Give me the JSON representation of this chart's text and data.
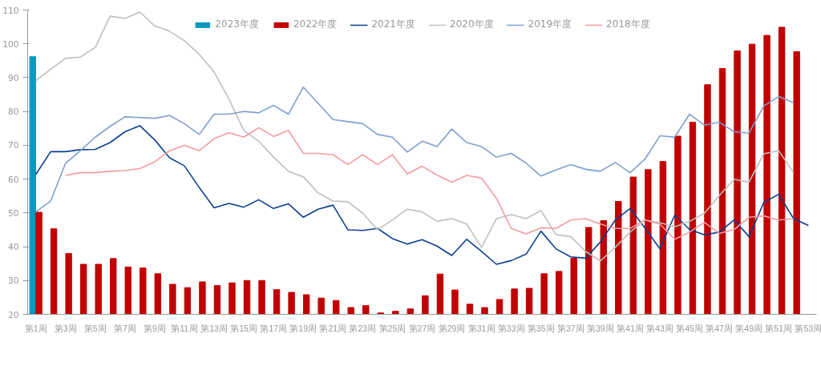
{
  "chart_data": {
    "type": "bar",
    "categories": [
      "第1周",
      null,
      "第3周",
      null,
      "第5周",
      null,
      "第7周",
      null,
      "第9周",
      null,
      "第11周",
      null,
      "第13周",
      null,
      "第15周",
      null,
      "第17周",
      null,
      "第19周",
      null,
      "第21周",
      null,
      "第23周",
      null,
      "第25周",
      null,
      "第27周",
      null,
      "第29周",
      null,
      "第31周",
      null,
      "第33周",
      null,
      "第35周",
      null,
      "第37周",
      null,
      "第39周",
      null,
      "第41周",
      null,
      "第43周",
      null,
      "第45周",
      null,
      "第47周",
      null,
      "第49周",
      null,
      "第51周",
      null,
      "第53周"
    ],
    "ylim": [
      20,
      110
    ],
    "yticks": [
      20,
      30,
      40,
      50,
      60,
      70,
      80,
      90,
      100,
      110
    ],
    "legend": "top",
    "series": [
      {
        "name": "2023年度",
        "color": "#0899c3",
        "values": [
          96.2,
          null,
          null,
          null,
          null,
          null,
          null,
          null,
          null,
          null,
          null,
          null,
          null,
          null,
          null,
          null,
          null,
          null,
          null,
          null,
          null,
          null,
          null,
          null,
          null,
          null,
          null,
          null,
          null,
          null,
          null,
          null,
          null,
          null,
          null,
          null,
          null,
          null,
          null,
          null,
          null,
          null,
          null,
          null,
          null,
          null,
          null,
          null,
          null,
          null,
          null,
          null,
          null
        ]
      },
      {
        "name": "2022年度",
        "color": "#c00000",
        "values": [
          50.2,
          45.3,
          38,
          34.8,
          34.8,
          36.5,
          34,
          33.7,
          32,
          28.9,
          27.9,
          29.6,
          28.5,
          29.3,
          30,
          30,
          27.3,
          26.5,
          25.8,
          24.8,
          24.1,
          22,
          22.6,
          20.4,
          20.9,
          21.6,
          25.5,
          31.9,
          27.2,
          23,
          22,
          24.4,
          27.5,
          27.7,
          32,
          32.7,
          36.6,
          45.7,
          47.7,
          53.4,
          60.6,
          62.8,
          65.2,
          72.7,
          76.8,
          87.9,
          92.7,
          97.9,
          99.9,
          102.5,
          104.9,
          97.7,
          null
        ]
      },
      {
        "name": "2021年度",
        "type": "line",
        "color": "#0d3f8f",
        "values": [
          61.4,
          68.1,
          68.1,
          68.7,
          68.8,
          70.8,
          74,
          75.8,
          71.6,
          66.3,
          63.9,
          57.5,
          51.5,
          52.8,
          51.7,
          53.9,
          51.3,
          52.7,
          48.7,
          51.1,
          52.3,
          45,
          44.8,
          45.4,
          42.4,
          40.8,
          42.1,
          40.2,
          37.4,
          42.2,
          38.6,
          34.8,
          35.9,
          37.8,
          44.6,
          39.4,
          37,
          36.6,
          41.4,
          47.9,
          51.3,
          45.5,
          39.4,
          49.3,
          45.1,
          43.5,
          44.3,
          47.9,
          43,
          53.1,
          55.5,
          48.3,
          46.3
        ]
      },
      {
        "name": "2020年度",
        "type": "line",
        "color": "#bfbfbf",
        "values": [
          89.1,
          92.5,
          95.7,
          96.1,
          98.9,
          108.2,
          107.5,
          109.4,
          105.3,
          103.7,
          100.9,
          96.9,
          91.7,
          83.6,
          74.4,
          71.2,
          66.5,
          62.3,
          60.7,
          55.9,
          53.5,
          53.3,
          49.9,
          45,
          47.9,
          51.1,
          50.3,
          47.5,
          48.3,
          46.7,
          39.8,
          48.3,
          49.5,
          48.3,
          50.7,
          43.6,
          43,
          38.6,
          35.8,
          39.8,
          44.3,
          47.9,
          47.1,
          45.9,
          47.5,
          49.9,
          55.1,
          59.9,
          59.1,
          67.5,
          68.4,
          61.9,
          null
        ]
      },
      {
        "name": "2019年度",
        "type": "line",
        "color": "#7f9fcf",
        "values": [
          50.3,
          53.5,
          64.7,
          68.4,
          72.4,
          75.6,
          78.4,
          78.2,
          78,
          78.8,
          76.4,
          73.2,
          79.2,
          79.2,
          80,
          79.6,
          81.8,
          79.2,
          87.2,
          82.4,
          77.6,
          77,
          76.4,
          73.2,
          72.4,
          68,
          71.2,
          69.6,
          74.8,
          70.8,
          69.6,
          66.5,
          67.6,
          64.7,
          60.9,
          62.7,
          64.3,
          62.9,
          62.3,
          64.9,
          61.9,
          65.9,
          72.8,
          72.4,
          79.2,
          76,
          76.8,
          74,
          73.6,
          81.6,
          84.4,
          82.6,
          null
        ]
      },
      {
        "name": "2018年度",
        "type": "line",
        "color": "#f29ca3",
        "values": [
          null,
          null,
          61.1,
          61.9,
          61.9,
          62.3,
          62.5,
          63.1,
          65.1,
          68.4,
          70,
          68.4,
          72,
          73.7,
          72.4,
          75.2,
          72.6,
          74.4,
          67.6,
          67.6,
          67.2,
          64.3,
          67.2,
          64.3,
          67.2,
          61.5,
          63.8,
          61.2,
          59.1,
          61.1,
          60.3,
          54.3,
          45.4,
          43.8,
          45.6,
          45.4,
          47.9,
          48.3,
          46.7,
          45.4,
          45.4,
          47.9,
          46.7,
          42.2,
          44.3,
          47.2,
          43.9,
          45.1,
          48.7,
          49.1,
          47.9,
          48.3,
          null
        ]
      }
    ]
  }
}
